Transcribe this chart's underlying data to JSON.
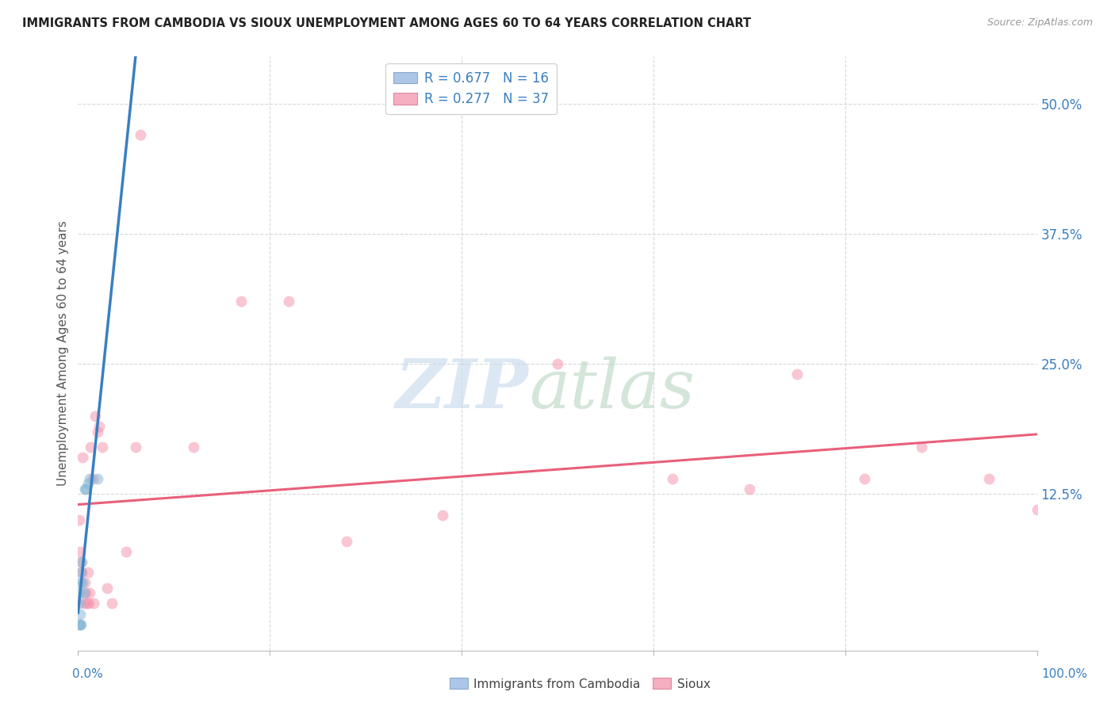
{
  "title": "IMMIGRANTS FROM CAMBODIA VS SIOUX UNEMPLOYMENT AMONG AGES 60 TO 64 YEARS CORRELATION CHART",
  "source": "Source: ZipAtlas.com",
  "ylabel": "Unemployment Among Ages 60 to 64 years",
  "yticks": [
    0.0,
    0.125,
    0.25,
    0.375,
    0.5
  ],
  "ytick_labels": [
    "",
    "12.5%",
    "25.0%",
    "37.5%",
    "50.0%"
  ],
  "xlim": [
    0.0,
    1.0
  ],
  "ylim": [
    -0.025,
    0.545
  ],
  "legend1_label": "R = 0.677   N = 16",
  "legend2_label": "R = 0.277   N = 37",
  "legend_color1": "#adc6e8",
  "legend_color2": "#f5afc0",
  "background_color": "#ffffff",
  "grid_color": "#d8d8d8",
  "cambodia_x": [
    0.001,
    0.001,
    0.001,
    0.002,
    0.002,
    0.002,
    0.003,
    0.003,
    0.004,
    0.005,
    0.006,
    0.007,
    0.008,
    0.01,
    0.012,
    0.02
  ],
  "cambodia_y": [
    0.0,
    0.02,
    0.03,
    0.0,
    0.01,
    0.04,
    0.0,
    0.05,
    0.06,
    0.04,
    0.03,
    0.13,
    0.13,
    0.135,
    0.14,
    0.14
  ],
  "sioux_x": [
    0.001,
    0.002,
    0.003,
    0.004,
    0.005,
    0.006,
    0.007,
    0.008,
    0.009,
    0.01,
    0.011,
    0.012,
    0.013,
    0.015,
    0.016,
    0.018,
    0.02,
    0.022,
    0.025,
    0.03,
    0.035,
    0.05,
    0.06,
    0.065,
    0.12,
    0.17,
    0.22,
    0.28,
    0.38,
    0.5,
    0.62,
    0.7,
    0.75,
    0.82,
    0.88,
    0.95,
    1.0
  ],
  "sioux_y": [
    0.1,
    0.07,
    0.06,
    0.05,
    0.16,
    0.02,
    0.04,
    0.03,
    0.02,
    0.05,
    0.02,
    0.03,
    0.17,
    0.14,
    0.02,
    0.2,
    0.185,
    0.19,
    0.17,
    0.035,
    0.02,
    0.07,
    0.17,
    0.47,
    0.17,
    0.31,
    0.31,
    0.08,
    0.105,
    0.25,
    0.14,
    0.13,
    0.24,
    0.14,
    0.17,
    0.14,
    0.11
  ],
  "scatter_color_cambodia": "#7fb3d3",
  "scatter_color_sioux": "#f48fa8",
  "scatter_alpha": 0.5,
  "scatter_size": 100,
  "trendline_cambodia_solid_color": "#3a7fc1",
  "trendline_cambodia_dash_color": "#a0c8e8",
  "trendline_sioux_color": "#e8607a",
  "trendline_linewidth": 2.2
}
